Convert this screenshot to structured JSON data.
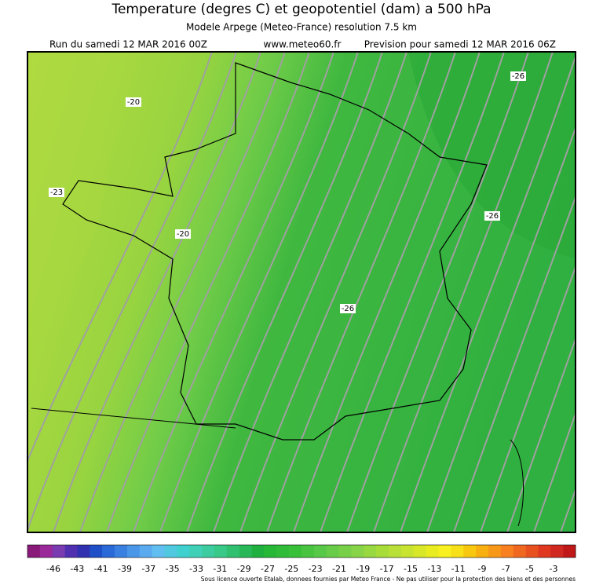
{
  "header": {
    "title": "Temperature (degres C) et geopotentiel (dam) a 500 hPa",
    "subtitle": "Modele Arpege (Meteo-France) resolution 7.5 km",
    "run": "Run du samedi 12 MAR 2016 00Z",
    "site": "www.meteo60.fr",
    "forecast": "Prevision pour samedi 12 MAR 2016 06Z"
  },
  "contour_labels": [
    -20,
    -26,
    -23,
    -26,
    -20,
    -26
  ],
  "colorbar": {
    "labels": [
      -46,
      -43,
      -41,
      -39,
      -37,
      -35,
      -33,
      -31,
      -29,
      -27,
      -25,
      -23,
      -21,
      -19,
      -17,
      -15,
      -13,
      -11,
      -9,
      -7,
      -5,
      -3
    ],
    "colors": [
      "#8a1a7a",
      "#9a2a9a",
      "#7a3ab0",
      "#5030b0",
      "#3030b0",
      "#2050c8",
      "#2a6ad8",
      "#3a80e0",
      "#4a96e8",
      "#5aaaf0",
      "#60bff0",
      "#50c8e0",
      "#40d0d0",
      "#40d0b8",
      "#3ccca0",
      "#38c888",
      "#30c070",
      "#28b858",
      "#20b040",
      "#28b838",
      "#30bc38",
      "#38c038",
      "#48c440",
      "#58c848",
      "#68cc48",
      "#78d048",
      "#88d448",
      "#98d840",
      "#a8dc38",
      "#b8e038",
      "#c8e430",
      "#d8e828",
      "#e8ec20",
      "#f8f020",
      "#f8e018",
      "#f8c810",
      "#f8b010",
      "#f89818",
      "#f88020",
      "#f06820",
      "#e85020",
      "#e03820",
      "#d02820",
      "#c01818"
    ]
  },
  "footer": "Sous licence ouverte Etalab, donnees fournies par Meteo France - Ne pas utiliser pour la protection des biens et des personnes"
}
